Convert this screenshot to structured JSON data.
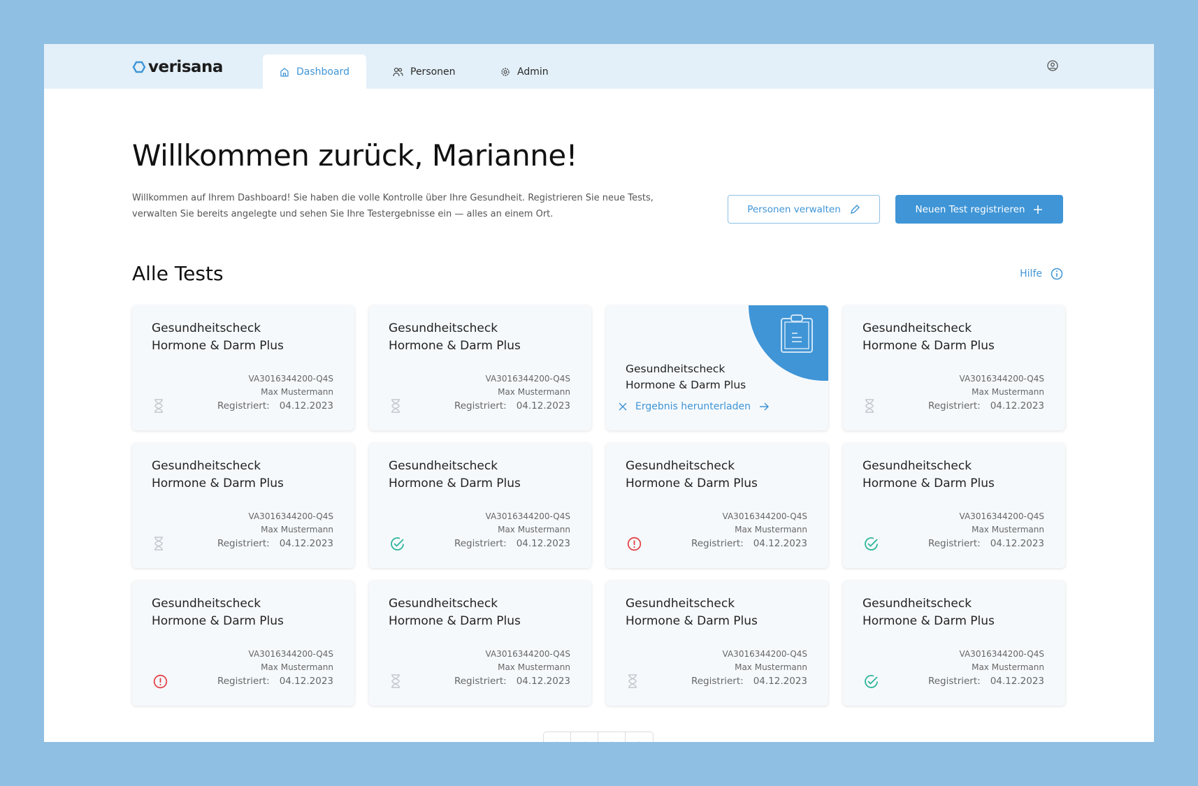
{
  "app": {
    "logo": "verisana"
  },
  "nav": {
    "tabs": [
      {
        "label": "Dashboard",
        "icon": "home-icon",
        "active": true
      },
      {
        "label": "Personen",
        "icon": "users-icon"
      },
      {
        "label": "Admin",
        "icon": "gear-icon"
      }
    ],
    "user_icon": "user-circle-icon"
  },
  "header": {
    "title": "Willkommen zurück, Marianne!",
    "description": "Willkommen auf Ihrem Dashboard! Sie haben die volle Kontrolle über Ihre Gesundheit. Registrieren Sie neue Tests, verwalten Sie bereits angelegte und sehen Sie Ihre Testergebnisse ein — alles an einem Ort.",
    "manage_button": "Personen verwalten",
    "register_button": "Neuen Test registrieren"
  },
  "tests": {
    "title": "Alle Tests",
    "help": "Hilfe",
    "cards": [
      {
        "title1": "Gesundheitscheck",
        "title2": "Hormone & Darm Plus",
        "code": "VA3016344200-Q4S",
        "person": "Max Mustermann",
        "reg_label": "Registriert:",
        "date": "04.12.2023",
        "status": "pending"
      },
      {
        "title1": "Gesundheitscheck",
        "title2": "Hormone & Darm Plus",
        "code": "VA3016344200-Q4S",
        "person": "Max Mustermann",
        "reg_label": "Registriert:",
        "date": "04.12.2023",
        "status": "pending"
      },
      {
        "title1": "Gesundheitscheck",
        "title2": "Hormone & Darm Plus",
        "status": "result",
        "download": "Ergebnis herunterladen"
      },
      {
        "title1": "Gesundheitscheck",
        "title2": "Hormone & Darm Plus",
        "code": "VA3016344200-Q4S",
        "person": "Max Mustermann",
        "reg_label": "Registriert:",
        "date": "04.12.2023",
        "status": "pending"
      },
      {
        "title1": "Gesundheitscheck",
        "title2": "Hormone & Darm Plus",
        "code": "VA3016344200-Q4S",
        "person": "Max Mustermann",
        "reg_label": "Registriert:",
        "date": "04.12.2023",
        "status": "pending"
      },
      {
        "title1": "Gesundheitscheck",
        "title2": "Hormone & Darm Plus",
        "code": "VA3016344200-Q4S",
        "person": "Max Mustermann",
        "reg_label": "Registriert:",
        "date": "04.12.2023",
        "status": "ok"
      },
      {
        "title1": "Gesundheitscheck",
        "title2": "Hormone & Darm Plus",
        "code": "VA3016344200-Q4S",
        "person": "Max Mustermann",
        "reg_label": "Registriert:",
        "date": "04.12.2023",
        "status": "error"
      },
      {
        "title1": "Gesundheitscheck",
        "title2": "Hormone & Darm Plus",
        "code": "VA3016344200-Q4S",
        "person": "Max Mustermann",
        "reg_label": "Registriert:",
        "date": "04.12.2023",
        "status": "ok"
      },
      {
        "title1": "Gesundheitscheck",
        "title2": "Hormone & Darm Plus",
        "code": "VA3016344200-Q4S",
        "person": "Max Mustermann",
        "reg_label": "Registriert:",
        "date": "04.12.2023",
        "status": "error"
      },
      {
        "title1": "Gesundheitscheck",
        "title2": "Hormone & Darm Plus",
        "code": "VA3016344200-Q4S",
        "person": "Max Mustermann",
        "reg_label": "Registriert:",
        "date": "04.12.2023",
        "status": "pending"
      },
      {
        "title1": "Gesundheitscheck",
        "title2": "Hormone & Darm Plus",
        "code": "VA3016344200-Q4S",
        "person": "Max Mustermann",
        "reg_label": "Registriert:",
        "date": "04.12.2023",
        "status": "pending"
      },
      {
        "title1": "Gesundheitscheck",
        "title2": "Hormone & Darm Plus",
        "code": "VA3016344200-Q4S",
        "person": "Max Mustermann",
        "reg_label": "Registriert:",
        "date": "04.12.2023",
        "status": "ok"
      }
    ]
  },
  "colors": {
    "accent": "#3f95d6",
    "nav_bg": "#e3f0f9",
    "ok": "#2bb59a",
    "error": "#e2454a",
    "pending": "#c4c8cc"
  }
}
